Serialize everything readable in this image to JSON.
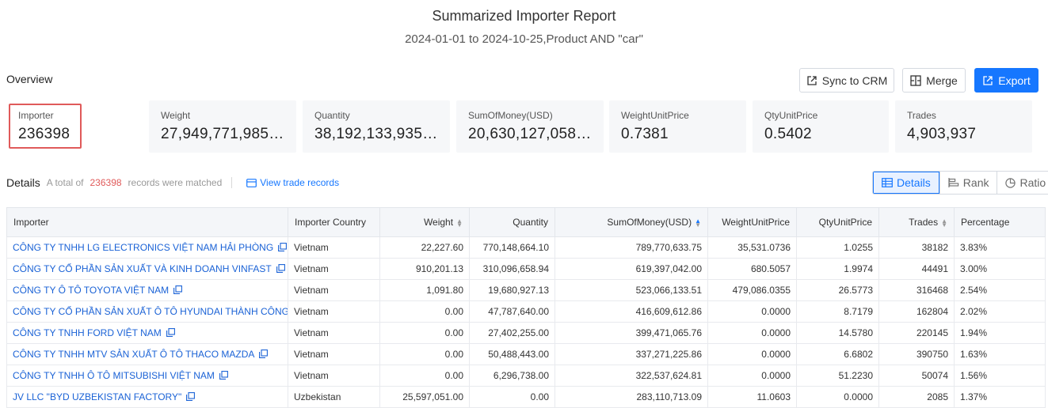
{
  "header": {
    "title": "Summarized Importer Report",
    "subtitle": "2024-01-01 to 2024-10-25,Product AND \"car\""
  },
  "overview": {
    "label": "Overview",
    "buttons": {
      "sync": "Sync to CRM",
      "merge": "Merge",
      "export": "Export"
    },
    "stats": [
      {
        "label": "Importer",
        "value": "236398"
      },
      {
        "label": "Weight",
        "value": "27,949,771,985.…"
      },
      {
        "label": "Quantity",
        "value": "38,192,133,935.…"
      },
      {
        "label": "SumOfMoney(USD)",
        "value": "20,630,127,058.…"
      },
      {
        "label": "WeightUnitPrice",
        "value": "0.7381"
      },
      {
        "label": "QtyUnitPrice",
        "value": "0.5402"
      },
      {
        "label": "Trades",
        "value": "4,903,937"
      }
    ]
  },
  "details": {
    "title": "Details",
    "total_prefix": "A total of",
    "count": "236398",
    "total_suffix": "records were matched",
    "view_link": "View trade records",
    "views": {
      "details": "Details",
      "rank": "Rank",
      "ratio": "Ratio"
    },
    "selected_view": "Details"
  },
  "table": {
    "headers": [
      "Importer",
      "Importer Country",
      "Weight",
      "Quantity",
      "SumOfMoney(USD)",
      "WeightUnitPrice",
      "QtyUnitPrice",
      "Trades",
      "Percentage"
    ],
    "rows": [
      [
        "CÔNG TY TNHH LG ELECTRONICS VIỆT NAM HẢI PHÒNG",
        "Vietnam",
        "22,227.60",
        "770,148,664.10",
        "789,770,633.75",
        "35,531.0736",
        "1.0255",
        "38182",
        "3.83%"
      ],
      [
        "CÔNG TY CỔ PHẦN SẢN XUẤT VÀ KINH DOANH VINFAST",
        "Vietnam",
        "910,201.13",
        "310,096,658.94",
        "619,397,042.00",
        "680.5057",
        "1.9974",
        "44491",
        "3.00%"
      ],
      [
        "CÔNG TY Ô TÔ TOYOTA VIỆT NAM",
        "Vietnam",
        "1,091.80",
        "19,680,927.13",
        "523,066,133.51",
        "479,086.0355",
        "26.5773",
        "316468",
        "2.54%"
      ],
      [
        "CÔNG TY CỔ PHẦN SẢN XUẤT Ô TÔ HYUNDAI THÀNH CÔNG",
        "Vietnam",
        "0.00",
        "47,787,640.00",
        "416,609,612.86",
        "0.0000",
        "8.7179",
        "162804",
        "2.02%"
      ],
      [
        "CÔNG TY TNHH FORD VIỆT NAM",
        "Vietnam",
        "0.00",
        "27,402,255.00",
        "399,471,065.76",
        "0.0000",
        "14.5780",
        "220145",
        "1.94%"
      ],
      [
        "CÔNG TY TNHH MTV SẢN XUẤT Ô TÔ THACO MAZDA",
        "Vietnam",
        "0.00",
        "50,488,443.00",
        "337,271,225.86",
        "0.0000",
        "6.6802",
        "390750",
        "1.63%"
      ],
      [
        "CÔNG TY TNHH Ô TÔ MITSUBISHI VIỆT NAM",
        "Vietnam",
        "0.00",
        "6,296,738.00",
        "322,537,624.81",
        "0.0000",
        "51.2230",
        "50074",
        "1.56%"
      ],
      [
        "JV LLC \"BYD UZBEKISTAN FACTORY\"",
        "Uzbekistan",
        "25,597,051.00",
        "0.00",
        "283,110,713.09",
        "11.0603",
        "0.0000",
        "2085",
        "1.37%"
      ]
    ]
  },
  "colors": {
    "accent": "#1677ff",
    "highlight": "#e05a5a",
    "link": "#1a62d6"
  }
}
